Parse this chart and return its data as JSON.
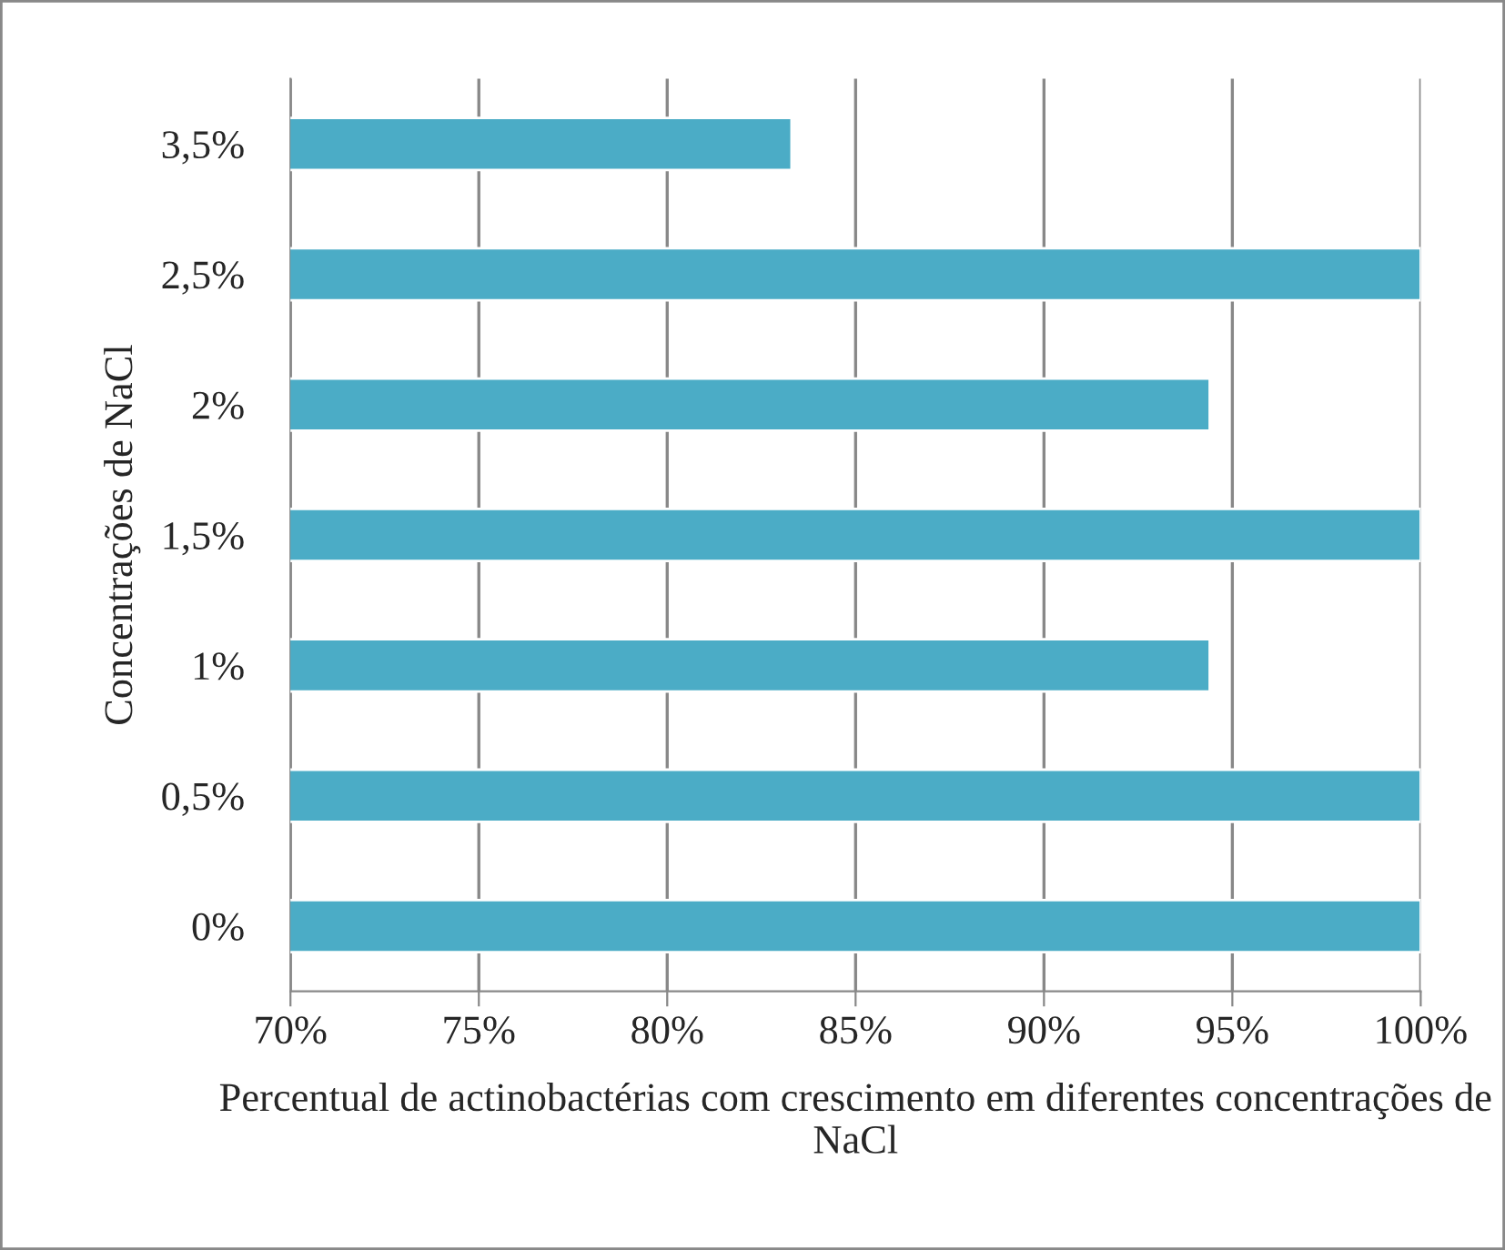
{
  "chart_data": {
    "type": "bar",
    "orientation": "horizontal",
    "xlabel": "Percentual de actinobactérias com crescimento em diferentes concentrações de NaCl",
    "ylabel": "Concentrações de NaCl",
    "categories": [
      "3,5%",
      "2,5%",
      "2%",
      "1,5%",
      "1%",
      "0,5%",
      "0%"
    ],
    "values": [
      83.3,
      100,
      94.4,
      100,
      94.4,
      100,
      100
    ],
    "color": "#4bacc6",
    "xlim": [
      70,
      100
    ],
    "xticks": [
      {
        "value": 70,
        "label": "70%"
      },
      {
        "value": 75,
        "label": "75%"
      },
      {
        "value": 80,
        "label": "80%"
      },
      {
        "value": 85,
        "label": "85%"
      },
      {
        "value": 90,
        "label": "90%"
      },
      {
        "value": 95,
        "label": "95%"
      },
      {
        "value": 100,
        "label": "100%"
      }
    ],
    "grid": "x",
    "legend": false
  }
}
